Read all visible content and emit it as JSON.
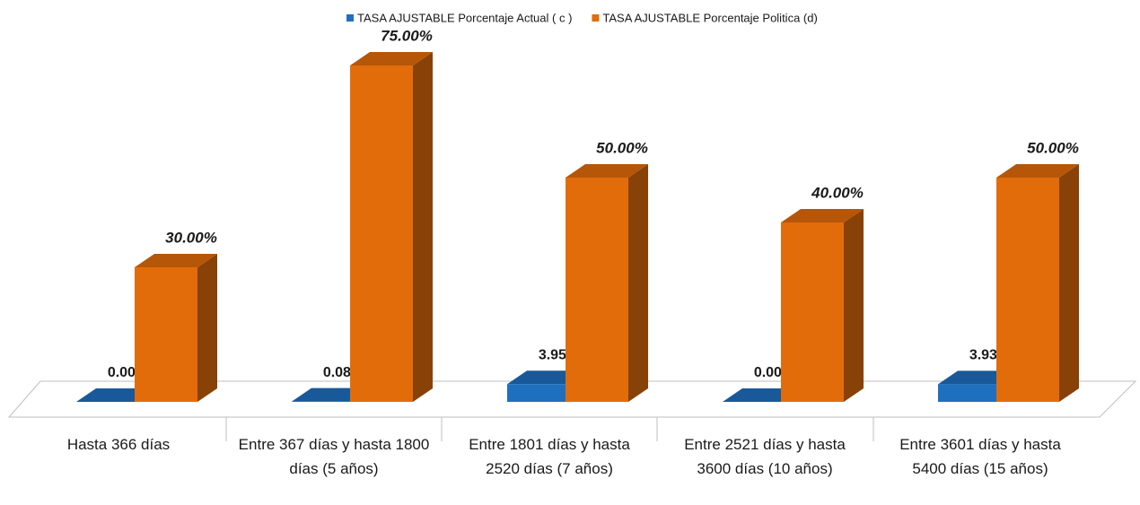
{
  "chart_data": {
    "type": "bar3d",
    "categories": [
      "Hasta 366 días",
      "Entre 367 días y hasta 1800 días (5 años)",
      "Entre 1801 días y hasta 2520 días (7 años)",
      "Entre  2521 días y hasta 3600 días (10 años)",
      "Entre 3601 días y hasta 5400 días (15 años)"
    ],
    "series": [
      {
        "name": "TASA AJUSTABLE Porcentaje Actual ( c )",
        "color": "#1f6fbf",
        "values": [
          0,
          0.08,
          3.95,
          0,
          3.93
        ],
        "value_labels": [
          "0.00%",
          "0.08%",
          "3.95%",
          "0.00%",
          "3.93%"
        ]
      },
      {
        "name": "TASA AJUSTABLE Porcentaje Politica (d)",
        "color": "#e36c0a",
        "values": [
          30,
          75,
          50,
          40,
          50
        ],
        "value_labels": [
          "30.00%",
          "75.00%",
          "50.00%",
          "40.00%",
          "50.00%"
        ]
      }
    ],
    "legend": "top"
  }
}
